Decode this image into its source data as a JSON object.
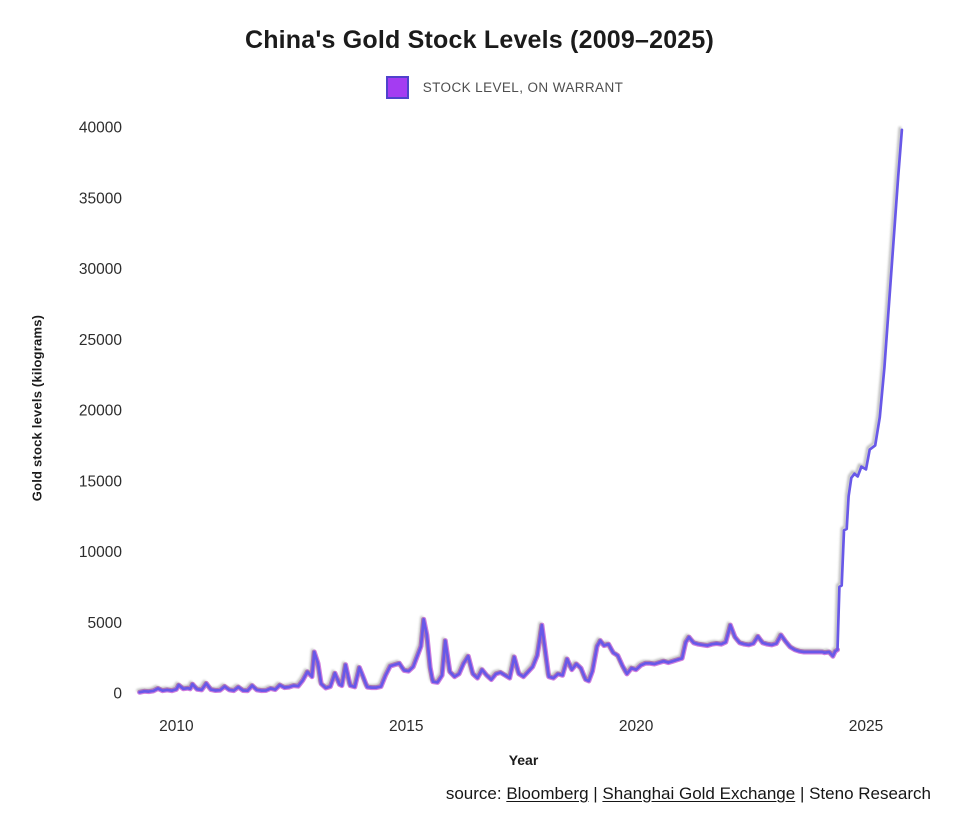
{
  "page": {
    "background": "#ffffff"
  },
  "chart_data": {
    "type": "line",
    "title": "China's Gold Stock Levels (2009–2025)",
    "xlabel": "Year",
    "ylabel": "Gold stock levels (kilograms)",
    "x_ticks": [
      2010,
      2015,
      2020,
      2025
    ],
    "y_ticks": [
      0,
      5000,
      10000,
      15000,
      20000,
      25000,
      30000,
      35000,
      40000
    ],
    "x_range": [
      2009.1,
      2026.0
    ],
    "y_range": [
      0,
      40000
    ],
    "grid": false,
    "legend_position": "top-center",
    "legend": [
      {
        "label": "STOCK LEVEL, ON WARRANT",
        "swatch_fill": "#a43cf2",
        "swatch_border": "#4f42cc"
      }
    ],
    "series": [
      {
        "name": "Stock level, on warrant",
        "color_main": "#6858e8",
        "color_halo": "#c35fd6",
        "halo_until_x": 2024.4,
        "points": [
          [
            2009.2,
            50
          ],
          [
            2009.3,
            120
          ],
          [
            2009.4,
            100
          ],
          [
            2009.5,
            150
          ],
          [
            2009.6,
            320
          ],
          [
            2009.7,
            160
          ],
          [
            2009.8,
            220
          ],
          [
            2009.9,
            160
          ],
          [
            2010.0,
            260
          ],
          [
            2010.05,
            560
          ],
          [
            2010.15,
            300
          ],
          [
            2010.25,
            340
          ],
          [
            2010.3,
            300
          ],
          [
            2010.35,
            620
          ],
          [
            2010.45,
            260
          ],
          [
            2010.55,
            220
          ],
          [
            2010.65,
            680
          ],
          [
            2010.75,
            240
          ],
          [
            2010.85,
            180
          ],
          [
            2010.95,
            200
          ],
          [
            2011.05,
            460
          ],
          [
            2011.15,
            220
          ],
          [
            2011.25,
            170
          ],
          [
            2011.35,
            420
          ],
          [
            2011.45,
            180
          ],
          [
            2011.55,
            160
          ],
          [
            2011.65,
            520
          ],
          [
            2011.75,
            220
          ],
          [
            2011.85,
            170
          ],
          [
            2011.95,
            180
          ],
          [
            2012.05,
            320
          ],
          [
            2012.15,
            240
          ],
          [
            2012.25,
            560
          ],
          [
            2012.35,
            380
          ],
          [
            2012.45,
            420
          ],
          [
            2012.55,
            520
          ],
          [
            2012.65,
            480
          ],
          [
            2012.75,
            900
          ],
          [
            2012.85,
            1500
          ],
          [
            2012.95,
            1150
          ],
          [
            2013.0,
            2900
          ],
          [
            2013.08,
            2100
          ],
          [
            2013.15,
            650
          ],
          [
            2013.25,
            350
          ],
          [
            2013.35,
            450
          ],
          [
            2013.45,
            1400
          ],
          [
            2013.55,
            600
          ],
          [
            2013.6,
            520
          ],
          [
            2013.68,
            2000
          ],
          [
            2013.78,
            520
          ],
          [
            2013.88,
            430
          ],
          [
            2013.98,
            1800
          ],
          [
            2014.05,
            1250
          ],
          [
            2014.15,
            420
          ],
          [
            2014.25,
            380
          ],
          [
            2014.35,
            380
          ],
          [
            2014.45,
            450
          ],
          [
            2014.55,
            1250
          ],
          [
            2014.65,
            1900
          ],
          [
            2014.75,
            2000
          ],
          [
            2014.85,
            2100
          ],
          [
            2014.95,
            1600
          ],
          [
            2015.05,
            1550
          ],
          [
            2015.15,
            1850
          ],
          [
            2015.25,
            2700
          ],
          [
            2015.32,
            3300
          ],
          [
            2015.38,
            5200
          ],
          [
            2015.45,
            4100
          ],
          [
            2015.52,
            1800
          ],
          [
            2015.58,
            800
          ],
          [
            2015.68,
            750
          ],
          [
            2015.78,
            1250
          ],
          [
            2015.85,
            3700
          ],
          [
            2015.95,
            1500
          ],
          [
            2016.05,
            1150
          ],
          [
            2016.15,
            1350
          ],
          [
            2016.25,
            2100
          ],
          [
            2016.35,
            2600
          ],
          [
            2016.45,
            1350
          ],
          [
            2016.55,
            1050
          ],
          [
            2016.65,
            1650
          ],
          [
            2016.75,
            1250
          ],
          [
            2016.85,
            950
          ],
          [
            2016.95,
            1350
          ],
          [
            2017.05,
            1450
          ],
          [
            2017.15,
            1250
          ],
          [
            2017.25,
            1050
          ],
          [
            2017.35,
            2550
          ],
          [
            2017.45,
            1350
          ],
          [
            2017.55,
            1150
          ],
          [
            2017.65,
            1500
          ],
          [
            2017.75,
            1850
          ],
          [
            2017.85,
            2650
          ],
          [
            2017.95,
            4800
          ],
          [
            2018.02,
            3100
          ],
          [
            2018.1,
            1150
          ],
          [
            2018.2,
            1050
          ],
          [
            2018.3,
            1350
          ],
          [
            2018.4,
            1250
          ],
          [
            2018.5,
            2400
          ],
          [
            2018.6,
            1650
          ],
          [
            2018.7,
            2050
          ],
          [
            2018.8,
            1750
          ],
          [
            2018.9,
            950
          ],
          [
            2018.97,
            850
          ],
          [
            2019.05,
            1550
          ],
          [
            2019.15,
            3300
          ],
          [
            2019.22,
            3700
          ],
          [
            2019.3,
            3350
          ],
          [
            2019.4,
            3450
          ],
          [
            2019.5,
            2850
          ],
          [
            2019.6,
            2650
          ],
          [
            2019.7,
            1950
          ],
          [
            2019.8,
            1350
          ],
          [
            2019.9,
            1750
          ],
          [
            2020.0,
            1650
          ],
          [
            2020.1,
            1950
          ],
          [
            2020.2,
            2100
          ],
          [
            2020.3,
            2100
          ],
          [
            2020.4,
            2050
          ],
          [
            2020.5,
            2150
          ],
          [
            2020.6,
            2250
          ],
          [
            2020.7,
            2150
          ],
          [
            2020.8,
            2250
          ],
          [
            2020.9,
            2350
          ],
          [
            2021.0,
            2450
          ],
          [
            2021.08,
            3600
          ],
          [
            2021.15,
            3950
          ],
          [
            2021.25,
            3550
          ],
          [
            2021.35,
            3450
          ],
          [
            2021.45,
            3400
          ],
          [
            2021.55,
            3350
          ],
          [
            2021.65,
            3450
          ],
          [
            2021.75,
            3500
          ],
          [
            2021.85,
            3450
          ],
          [
            2021.95,
            3600
          ],
          [
            2022.05,
            4800
          ],
          [
            2022.15,
            3950
          ],
          [
            2022.25,
            3550
          ],
          [
            2022.35,
            3450
          ],
          [
            2022.45,
            3400
          ],
          [
            2022.55,
            3500
          ],
          [
            2022.65,
            4000
          ],
          [
            2022.75,
            3550
          ],
          [
            2022.85,
            3450
          ],
          [
            2022.95,
            3400
          ],
          [
            2023.05,
            3500
          ],
          [
            2023.15,
            4100
          ],
          [
            2023.25,
            3650
          ],
          [
            2023.35,
            3250
          ],
          [
            2023.45,
            3050
          ],
          [
            2023.55,
            2950
          ],
          [
            2023.65,
            2900
          ],
          [
            2023.75,
            2900
          ],
          [
            2023.85,
            2900
          ],
          [
            2023.95,
            2900
          ],
          [
            2024.05,
            2900
          ],
          [
            2024.1,
            2850
          ],
          [
            2024.2,
            2900
          ],
          [
            2024.28,
            2600
          ],
          [
            2024.33,
            2950
          ],
          [
            2024.38,
            3050
          ],
          [
            2024.42,
            7500
          ],
          [
            2024.47,
            7600
          ],
          [
            2024.52,
            11500
          ],
          [
            2024.58,
            11600
          ],
          [
            2024.62,
            13900
          ],
          [
            2024.68,
            15200
          ],
          [
            2024.75,
            15500
          ],
          [
            2024.82,
            15300
          ],
          [
            2024.9,
            16000
          ],
          [
            2025.0,
            15800
          ],
          [
            2025.08,
            17200
          ],
          [
            2025.2,
            17500
          ],
          [
            2025.3,
            19500
          ],
          [
            2025.4,
            23000
          ],
          [
            2025.5,
            27500
          ],
          [
            2025.6,
            32000
          ],
          [
            2025.7,
            36500
          ],
          [
            2025.78,
            39800
          ]
        ]
      }
    ]
  },
  "source": {
    "prefix": "source: ",
    "link_bloomberg": "Bloomberg",
    "sep1": " | ",
    "link_sge": "Shanghai Gold Exchange",
    "sep2": " | ",
    "suffix": "Steno Research"
  }
}
